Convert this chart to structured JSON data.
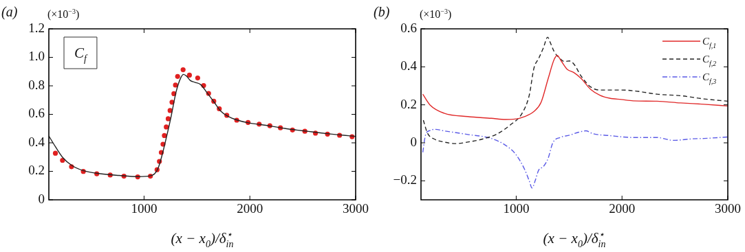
{
  "chart_data": [
    {
      "type": "line",
      "title": "(a)",
      "ylabel": "(×10$^{−3}$)",
      "xlabel": "(x − x$_{0}$)/δ$^{⋆}$$_{in}$",
      "annotations": [
        "C$_{f}$"
      ],
      "xlim": [
        100,
        3000
      ],
      "xticks": [
        1000,
        2000,
        3000
      ],
      "ylim": [
        0,
        1.2
      ],
      "yticks": [
        0,
        0.2,
        0.4,
        0.6,
        0.8,
        {
          "value": 1,
          "label": "1.0"
        },
        1.2
      ],
      "grid": false,
      "legend": false,
      "series": [
        {
          "type": "line",
          "color": "#222222",
          "marker": "none",
          "line_style": "solid",
          "x": [
            100,
            162,
            229,
            318,
            430,
            587,
            765,
            944,
            1056,
            1100,
            1134,
            1168,
            1212,
            1257,
            1302,
            1346,
            1373,
            1402,
            1436,
            1480,
            1536,
            1592,
            1659,
            1726,
            1793,
            1883,
            1994,
            2106,
            2218,
            2330,
            2441,
            2553,
            2665,
            2777,
            2888,
            3000
          ],
          "values": [
            0.448,
            0.373,
            0.299,
            0.241,
            0.204,
            0.183,
            0.171,
            0.163,
            0.168,
            0.183,
            0.224,
            0.307,
            0.44,
            0.589,
            0.755,
            0.855,
            0.88,
            0.868,
            0.838,
            0.825,
            0.808,
            0.755,
            0.689,
            0.622,
            0.586,
            0.559,
            0.539,
            0.528,
            0.515,
            0.501,
            0.49,
            0.48,
            0.47,
            0.461,
            0.453,
            0.445
          ]
        },
        {
          "type": "scatter",
          "color": "#e02020",
          "marker": "circle",
          "x": [
            162,
            229,
            314,
            426,
            553,
            680,
            810,
            940,
            1060,
            1123,
            1145,
            1163,
            1179,
            1192,
            1210,
            1228,
            1246,
            1264,
            1282,
            1297,
            1317,
            1369,
            1429,
            1507,
            1563,
            1610,
            1659,
            1711,
            1782,
            1876,
            1983,
            2088,
            2189,
            2289,
            2403,
            2520,
            2620,
            2734,
            2848,
            2966
          ],
          "values": [
            0.327,
            0.277,
            0.232,
            0.199,
            0.183,
            0.174,
            0.166,
            0.161,
            0.166,
            0.211,
            0.27,
            0.332,
            0.39,
            0.451,
            0.511,
            0.569,
            0.627,
            0.685,
            0.745,
            0.805,
            0.866,
            0.913,
            0.875,
            0.855,
            0.802,
            0.747,
            0.692,
            0.639,
            0.593,
            0.559,
            0.543,
            0.531,
            0.52,
            0.505,
            0.49,
            0.481,
            0.468,
            0.461,
            0.453,
            0.443
          ]
        }
      ]
    },
    {
      "type": "line",
      "title": "(b)",
      "ylabel": "(×10$^{−3}$)",
      "xlabel": "(x − x$_{0}$)/δ$^{⋆}$$_{in}$",
      "xlim": [
        100,
        3000
      ],
      "xticks": [
        1000,
        2000,
        3000
      ],
      "ylim": [
        -0.3,
        0.6
      ],
      "yticks": [
        {
          "value": -0.2,
          "label": "−0.2"
        },
        0,
        0.2,
        0.4,
        0.6
      ],
      "grid": false,
      "legend": "top right",
      "series": [
        {
          "name": "C$_{f,1}$",
          "color": "#e02828",
          "marker": "none",
          "line_style": "solid",
          "x": [
            117,
            184,
            318,
            542,
            765,
            899,
            989,
            1078,
            1168,
            1235,
            1302,
            1358,
            1387,
            1425,
            1480,
            1547,
            1615,
            1704,
            1793,
            1883,
            1994,
            2106,
            2330,
            2553,
            2777,
            3000
          ],
          "values": [
            0.256,
            0.2,
            0.156,
            0.138,
            0.129,
            0.123,
            0.125,
            0.138,
            0.165,
            0.213,
            0.338,
            0.438,
            0.46,
            0.431,
            0.388,
            0.369,
            0.338,
            0.281,
            0.25,
            0.235,
            0.228,
            0.221,
            0.219,
            0.21,
            0.203,
            0.194
          ]
        },
        {
          "name": "C$_{f,2}$",
          "color": "#222222",
          "marker": "none",
          "line_style": "dashed",
          "x": [
            122,
            162,
            229,
            318,
            430,
            542,
            676,
            810,
            944,
            1056,
            1123,
            1168,
            1212,
            1257,
            1297,
            1324,
            1358,
            1413,
            1458,
            1503,
            1547,
            1615,
            1704,
            1793,
            1994,
            2151,
            2330,
            2553,
            2777,
            3000
          ],
          "values": [
            0.119,
            0.05,
            0.019,
            0.004,
            -0.004,
            0.004,
            0.019,
            0.044,
            0.094,
            0.156,
            0.25,
            0.394,
            0.444,
            0.5,
            0.556,
            0.525,
            0.481,
            0.444,
            0.428,
            0.431,
            0.413,
            0.35,
            0.294,
            0.278,
            0.278,
            0.271,
            0.256,
            0.248,
            0.231,
            0.219
          ]
        },
        {
          "name": "C$_{f,3}$",
          "color": "#5a5ae6",
          "marker": "none",
          "line_style": "dotted",
          "x": [
            117,
            144,
            184,
            229,
            318,
            542,
            765,
            899,
            989,
            1078,
            1123,
            1150,
            1179,
            1212,
            1257,
            1302,
            1346,
            1413,
            1503,
            1592,
            1659,
            1726,
            1883,
            2106,
            2330,
            2486,
            2665,
            2777,
            3000
          ],
          "values": [
            -0.05,
            0.044,
            0.065,
            0.071,
            0.063,
            0.044,
            0.023,
            -0.013,
            -0.056,
            -0.138,
            -0.2,
            -0.238,
            -0.2,
            -0.144,
            -0.125,
            -0.081,
            0,
            0.028,
            0.04,
            0.056,
            0.063,
            0.048,
            0.038,
            0.028,
            0.028,
            0.013,
            0.021,
            0.023,
            0.031
          ]
        }
      ]
    }
  ]
}
